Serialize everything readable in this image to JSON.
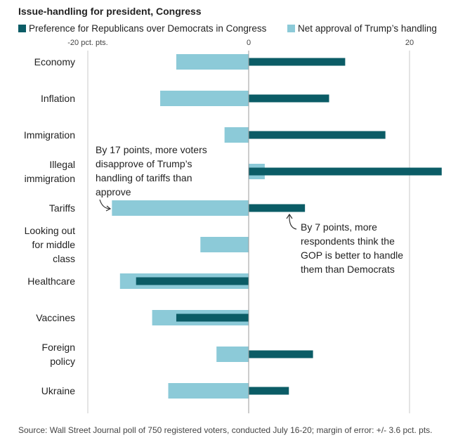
{
  "title": "Issue-handling for president, Congress",
  "source": "Source: Wall Street Journal poll of 750 registered voters, conducted July 16-20; margin of error: +/- 3.6 pct. pts.",
  "colors": {
    "dark": "#0b5c66",
    "light": "#8ccad8",
    "axis": "#c8c8c8",
    "text": "#222222"
  },
  "annotations": {
    "tariffs_note": "By 17 points, more voters disapprove of Trump’s handling of tariffs than approve",
    "gop_note": "By 7 points, more respondents think the GOP is better to handle them than Democrats"
  },
  "chart_data": {
    "type": "bar",
    "orientation": "horizontal",
    "categories": [
      "Economy",
      "Inflation",
      "Immigration",
      "Illegal immigration",
      "Tariffs",
      "Looking out for middle class",
      "Healthcare",
      "Vaccines",
      "Foreign policy",
      "Ukraine"
    ],
    "series": [
      {
        "name": "Net approval of Trump’s handling",
        "values": [
          -9,
          -11,
          -3,
          2,
          -17,
          -6,
          -16,
          -12,
          -4,
          -10
        ]
      },
      {
        "name": "Preference for Republicans over Democrats in Congress",
        "values": [
          12,
          10,
          17,
          24,
          7,
          null,
          -14,
          -9,
          8,
          5
        ]
      }
    ],
    "x_ticks": [
      {
        "value": -20,
        "label": "-20 pct. pts."
      },
      {
        "value": 0,
        "label": "0"
      },
      {
        "value": 20,
        "label": "20"
      }
    ],
    "xlim": [
      -20,
      24
    ],
    "grid": true,
    "legend": "top"
  }
}
